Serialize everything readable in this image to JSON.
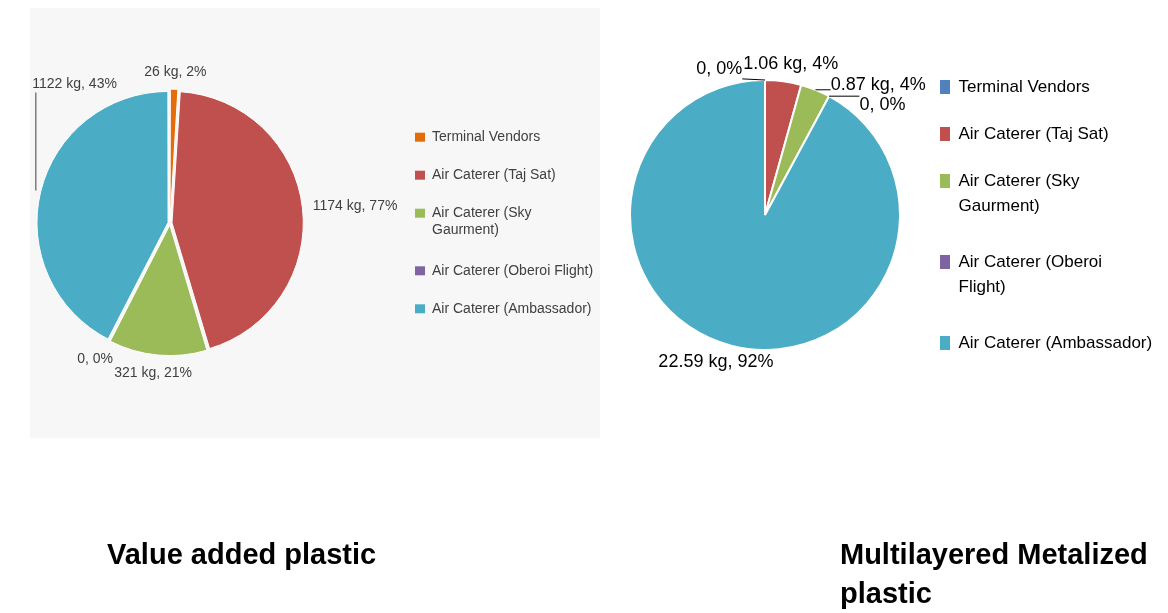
{
  "chart_data": [
    {
      "type": "pie",
      "title": "Value added plastic",
      "categories": [
        "Terminal Vendors",
        "Air Caterer (Taj Sat)",
        "Air Caterer (Sky Gaurment)",
        "Air Caterer (Oberoi Flight)",
        "Air Caterer (Ambassador)"
      ],
      "values": [
        26,
        1174,
        321,
        0,
        1122
      ],
      "colors": [
        "#e46c0a",
        "#c0504d",
        "#9bbb59",
        "#8064a2",
        "#4bacc6"
      ],
      "value_labels": [
        "26 kg, 2%",
        "1174 kg, 77%",
        "321 kg, 21%",
        "0, 0%",
        "1122 kg, 43%"
      ],
      "legend": "right"
    },
    {
      "type": "pie",
      "title": "Multilayered Metalized plastic",
      "categories": [
        "Terminal Vendors",
        "Air Caterer (Taj Sat)",
        "Air Caterer (Sky Gaurment)",
        "Air Caterer (Oberoi Flight)",
        "Air Caterer (Ambassador)"
      ],
      "values": [
        0,
        1.06,
        0.87,
        0,
        22.59
      ],
      "colors": [
        "#4f81bd",
        "#c0504d",
        "#9bbb59",
        "#8064a2",
        "#4bacc6"
      ],
      "value_labels": [
        "0, 0%",
        "1.06 kg, 4%",
        "0.87 kg, 4%",
        "0, 0%",
        "22.59 kg, 92%"
      ],
      "legend": "right"
    }
  ]
}
